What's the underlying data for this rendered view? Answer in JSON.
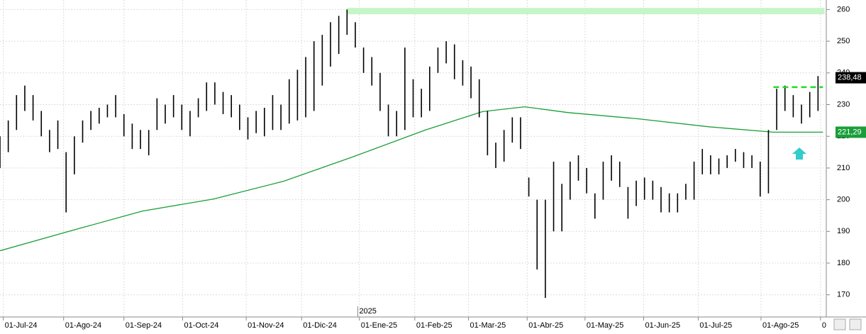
{
  "chart_data": {
    "type": "range_bar",
    "xlim": [
      0,
      100
    ],
    "ylim": [
      163,
      263
    ],
    "yticks": [
      170,
      180,
      190,
      200,
      210,
      220,
      230,
      240,
      250,
      260
    ],
    "xticks": [
      {
        "value": 0.4,
        "label": "01-Jul-24"
      },
      {
        "value": 7.7,
        "label": "01-Ago-24"
      },
      {
        "value": 15.0,
        "label": "01-Sep-24"
      },
      {
        "value": 22.1,
        "label": "01-Oct-24"
      },
      {
        "value": 29.8,
        "label": "01-Nov-24"
      },
      {
        "value": 36.5,
        "label": "01-Dic-24"
      },
      {
        "value": 43.5,
        "label": "01-Ene-25"
      },
      {
        "value": 50.2,
        "label": "01-Feb-25"
      },
      {
        "value": 56.7,
        "label": "01-Mar-25"
      },
      {
        "value": 63.8,
        "label": "01-Abr-25"
      },
      {
        "value": 70.8,
        "label": "01-May-25"
      },
      {
        "value": 77.9,
        "label": "01-Jun-25"
      },
      {
        "value": 84.5,
        "label": "01-Jul-25"
      },
      {
        "value": 92.1,
        "label": "01-Ago-25"
      },
      {
        "value": 99.3,
        "label": "0"
      }
    ],
    "grid": true,
    "year_marker": {
      "x": 43.3,
      "label": "2025"
    },
    "bar_color": "#000000",
    "x": [
      0,
      1,
      2,
      3,
      4,
      5,
      6,
      7,
      8,
      9,
      10,
      11,
      12,
      13,
      14,
      15,
      16,
      17,
      18,
      19,
      20,
      21,
      22,
      23,
      24,
      25,
      26,
      27,
      28,
      29,
      30,
      31,
      32,
      33,
      34,
      35,
      36,
      37,
      38,
      39,
      40,
      41,
      42,
      43,
      44,
      45,
      46,
      47,
      48,
      49,
      50,
      51,
      52,
      53,
      54,
      55,
      56,
      57,
      58,
      59,
      60,
      61,
      62,
      63,
      64,
      65,
      66,
      67,
      68,
      69,
      70,
      71,
      72,
      73,
      74,
      75,
      76,
      77,
      78,
      79,
      80,
      81,
      82,
      83,
      84,
      85,
      86,
      87,
      88,
      89,
      90,
      91,
      92,
      93,
      94,
      95,
      96,
      97,
      98,
      99
    ],
    "low": [
      210,
      215,
      222,
      228,
      225,
      220,
      215,
      216,
      196,
      208,
      218,
      222,
      224,
      226,
      226,
      220,
      216,
      216,
      214,
      222,
      224,
      226,
      222,
      220,
      226,
      228,
      230,
      227,
      226,
      222,
      219,
      221,
      220,
      222,
      222,
      224,
      225,
      226,
      228,
      236,
      242,
      246,
      252,
      248,
      240,
      236,
      228,
      220,
      220,
      222,
      226,
      226,
      228,
      240,
      243,
      238,
      236,
      232,
      226,
      214,
      210,
      212,
      218,
      216,
      201,
      178,
      169,
      190,
      190,
      200,
      206,
      202,
      194,
      200,
      206,
      204,
      194,
      198,
      200,
      200,
      196,
      196,
      196,
      200,
      200,
      208,
      208,
      208,
      210,
      212,
      210,
      210,
      201,
      202,
      222,
      228,
      226,
      224,
      226,
      228
    ],
    "high": [
      220,
      225,
      233,
      236,
      233,
      228,
      222,
      225,
      215,
      220,
      225,
      228,
      229,
      230,
      233,
      227,
      224,
      222,
      222,
      232,
      230,
      233,
      230,
      228,
      232,
      237,
      237,
      234,
      233,
      230,
      226,
      228,
      229,
      233,
      230,
      238,
      241,
      245,
      250,
      252,
      256,
      258,
      260,
      256,
      248,
      245,
      240,
      230,
      228,
      248,
      238,
      235,
      242,
      248,
      250,
      249,
      244,
      242,
      238,
      228,
      218,
      222,
      226,
      226,
      207,
      200,
      200,
      212,
      205,
      212,
      214,
      210,
      202,
      212,
      214,
      212,
      204,
      206,
      207,
      206,
      204,
      202,
      202,
      205,
      212,
      216,
      214,
      213,
      214,
      216,
      215,
      214,
      212,
      222,
      235,
      236,
      233,
      230,
      234,
      239
    ],
    "moving_average": {
      "color": "#1a9e3a",
      "x": [
        0,
        8.6,
        17.2,
        25.8,
        34.3,
        42.9,
        51.5,
        58.4,
        63.5,
        68.7,
        77.3,
        85.8,
        93.6,
        99.6
      ],
      "values": [
        183.9,
        190.2,
        196.4,
        200.2,
        205.8,
        213.7,
        222,
        227.8,
        229.3,
        227.5,
        225.5,
        223,
        221.3,
        221.3
      ]
    },
    "band": {
      "color": "#c6f5c6",
      "x": [
        42,
        99.8
      ],
      "y": [
        258.5,
        260.5
      ]
    },
    "resistance": {
      "color": "#22dd22",
      "x": [
        93.6,
        99.6
      ],
      "value": 235.5
    },
    "price_labels": [
      {
        "value": 238.48,
        "label": "238,48",
        "background": "#000000",
        "text_color": "#ffffff"
      },
      {
        "value": 221.29,
        "label": "221,29",
        "background": "#1a9e3a",
        "text_color": "#ffffff"
      }
    ]
  }
}
